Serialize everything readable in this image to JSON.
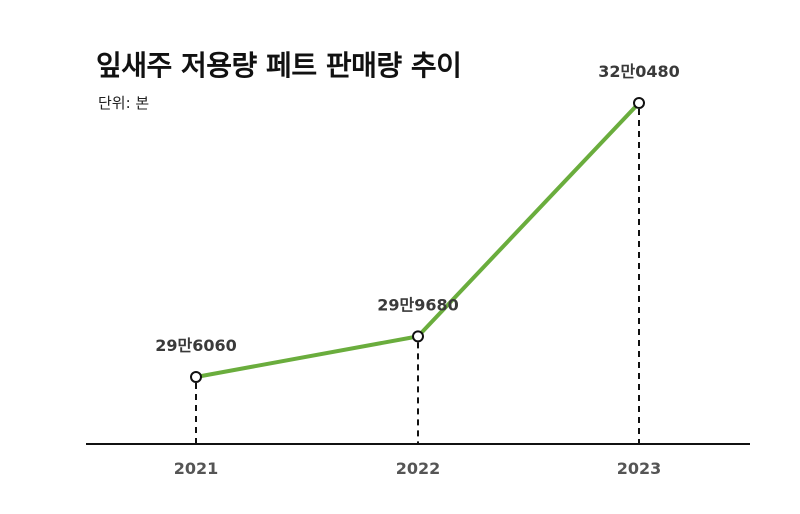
{
  "chart_data": {
    "type": "line",
    "title": "잎새주 저용량 페트 판매량 추이",
    "subtitle": "단위: 본",
    "categories": [
      "2021",
      "2022",
      "2023"
    ],
    "values": [
      296060,
      299680,
      320480
    ],
    "data_labels": [
      "29만6060",
      "29만9680",
      "32만0480"
    ],
    "ylim": [
      290000,
      322000
    ],
    "grid": false,
    "colors": {
      "line": "#6aad3d",
      "axis": "#111111",
      "marker_fill": "#ffffff",
      "marker_stroke": "#111111"
    }
  }
}
